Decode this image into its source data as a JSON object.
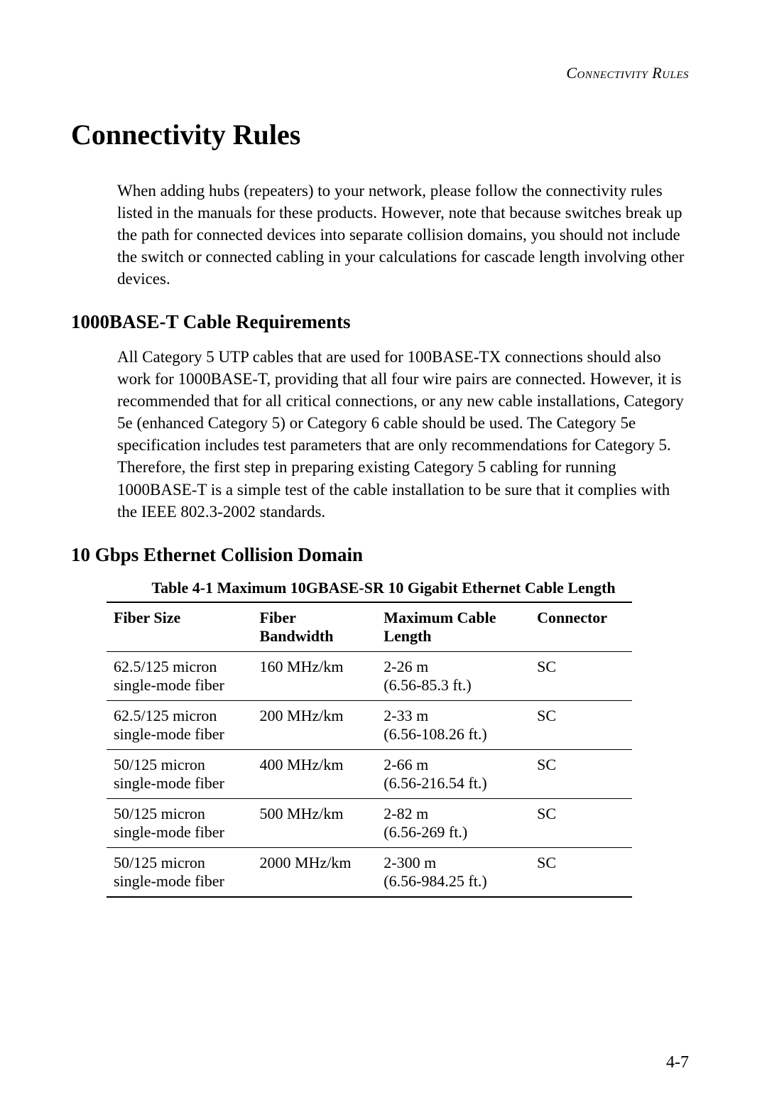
{
  "runningHeader": "Connectivity Rules",
  "mainTitle": "Connectivity Rules",
  "introParagraph": "When adding hubs (repeaters) to your network, please follow the connectivity rules listed in the manuals for these products. However, note that because switches break up the path for connected devices into separate collision domains, you should not include the switch or connected cabling in your calculations for cascade length involving other devices.",
  "section1": {
    "heading": "1000BASE-T Cable Requirements",
    "paragraph": "All Category 5 UTP cables that are used for 100BASE-TX connections should also work for 1000BASE-T, providing that all four wire pairs are connected. However, it is recommended that for all critical connections, or any new cable installations, Category 5e (enhanced Category 5) or Category 6 cable should be used. The Category 5e specification includes test parameters that are only recommendations for Category 5. Therefore, the first step in preparing existing Category 5 cabling for running 1000BASE-T is a simple test of the cable installation to be sure that it complies with the IEEE 802.3-2002 standards."
  },
  "section2": {
    "heading": "10 Gbps Ethernet Collision Domain",
    "tableCaption": "Table 4-1  Maximum 10GBASE-SR 10 Gigabit Ethernet Cable Length",
    "table": {
      "columns": [
        {
          "line1": "Fiber Size",
          "line2": ""
        },
        {
          "line1": "Fiber",
          "line2": "Bandwidth"
        },
        {
          "line1": "Maximum Cable",
          "line2": "Length"
        },
        {
          "line1": "Connector",
          "line2": ""
        }
      ],
      "rows": [
        {
          "fiberSize": {
            "line1": "62.5/125 micron",
            "line2": "single-mode fiber"
          },
          "bandwidth": {
            "line1": "160 MHz/km",
            "line2": ""
          },
          "maxLength": {
            "line1": "2-26 m",
            "line2": "(6.56-85.3 ft.)"
          },
          "connector": {
            "line1": "SC",
            "line2": ""
          }
        },
        {
          "fiberSize": {
            "line1": "62.5/125 micron",
            "line2": "single-mode fiber"
          },
          "bandwidth": {
            "line1": "200 MHz/km",
            "line2": ""
          },
          "maxLength": {
            "line1": "2-33 m",
            "line2": "(6.56-108.26 ft.)"
          },
          "connector": {
            "line1": "SC",
            "line2": ""
          }
        },
        {
          "fiberSize": {
            "line1": "50/125 micron",
            "line2": "single-mode fiber"
          },
          "bandwidth": {
            "line1": "400 MHz/km",
            "line2": ""
          },
          "maxLength": {
            "line1": "2-66 m",
            "line2": "(6.56-216.54 ft.)"
          },
          "connector": {
            "line1": "SC",
            "line2": ""
          }
        },
        {
          "fiberSize": {
            "line1": "50/125 micron",
            "line2": "single-mode fiber"
          },
          "bandwidth": {
            "line1": "500 MHz/km",
            "line2": ""
          },
          "maxLength": {
            "line1": "2-82 m",
            "line2": "(6.56-269 ft.)"
          },
          "connector": {
            "line1": "SC",
            "line2": ""
          }
        },
        {
          "fiberSize": {
            "line1": "50/125 micron",
            "line2": "single-mode fiber"
          },
          "bandwidth": {
            "line1": "2000 MHz/km",
            "line2": ""
          },
          "maxLength": {
            "line1": "2-300 m",
            "line2": "(6.56-984.25 ft.)"
          },
          "connector": {
            "line1": "SC",
            "line2": ""
          }
        }
      ]
    }
  },
  "pageNumber": "4-7"
}
